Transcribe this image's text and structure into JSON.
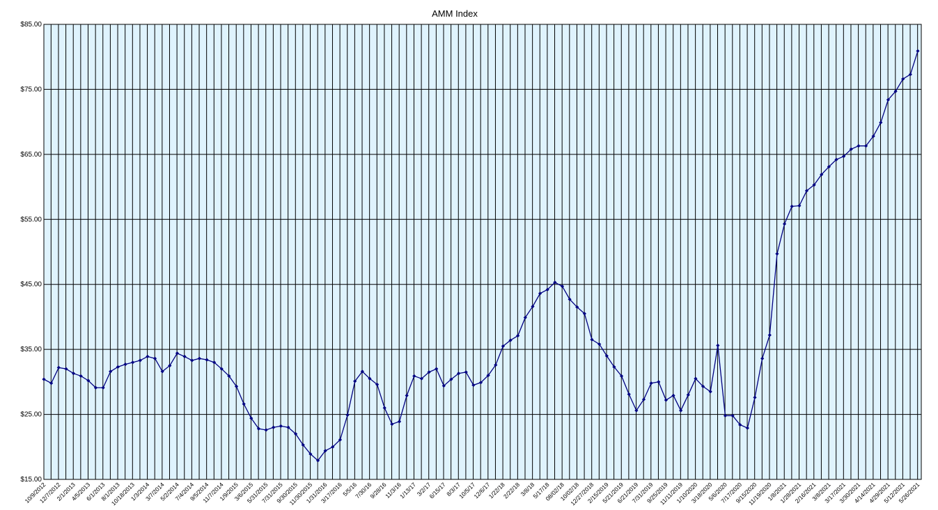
{
  "chart_data": {
    "type": "line",
    "title": "AMM Index",
    "categories": [
      "10/9/2012",
      null,
      "12/7/2012",
      null,
      "2/1/2013",
      null,
      "4/5/2013",
      null,
      "6/1/2013",
      null,
      "8/1/2013",
      null,
      "10/18/2013",
      null,
      "1/3/2014",
      null,
      "3/7/2014",
      null,
      "5/2/2014",
      null,
      "7/4/2014",
      null,
      "9/5/2014",
      null,
      "11/7/2014",
      null,
      "1/9/2015",
      null,
      "3/6/2015",
      null,
      "5/31/2015",
      null,
      "7/31/2015",
      null,
      "9/30/2015",
      null,
      "11/30/2015",
      null,
      "1/31/2016",
      null,
      "3/17/2016",
      null,
      "5/5/16",
      null,
      "7/30/16",
      null,
      "9/28/16",
      null,
      "11/3/16",
      null,
      "1/13/17",
      null,
      "3/2/17",
      null,
      "6/15/17",
      null,
      "8/3/17",
      null,
      "10/5/17",
      null,
      "12/6/17",
      null,
      "1/22/18",
      null,
      "2/22/18",
      null,
      "3/8/18",
      null,
      "5/17/18",
      null,
      "08/02/18",
      null,
      "10/02/18",
      null,
      "12/27/2018",
      null,
      "2/15/2019",
      null,
      "5/21/2019",
      null,
      "6/21/2019",
      null,
      "7/31/2019",
      null,
      "9/25/2019",
      null,
      "11/11/2019",
      null,
      "1/10/2020",
      null,
      "3/18/2020",
      null,
      "5/6/2020",
      null,
      "7/17/2020",
      null,
      "9/15/2020",
      null,
      "11/19/2020",
      null,
      "1/8/2021",
      null,
      "1/28/2021",
      null,
      "2/16/2021",
      null,
      "3/8/2021",
      null,
      "3/17/2021",
      null,
      "3/30/2021",
      null,
      "4/14/2021",
      null,
      "4/29/2021",
      null,
      "5/12/2021",
      null,
      "5/26/2021"
    ],
    "series": [
      {
        "name": "AMM Index",
        "color": "#000080",
        "values": [
          30.4,
          29.8,
          32.2,
          32.0,
          31.3,
          30.9,
          30.2,
          29.1,
          29.1,
          31.6,
          32.3,
          32.7,
          33.0,
          33.3,
          33.9,
          33.6,
          31.6,
          32.5,
          34.4,
          33.9,
          33.3,
          33.6,
          33.4,
          33.0,
          32.0,
          30.9,
          29.3,
          26.6,
          24.4,
          22.8,
          22.6,
          23.0,
          23.2,
          23.0,
          22.0,
          20.3,
          18.9,
          17.9,
          19.4,
          20.0,
          21.1,
          24.9,
          30.1,
          31.6,
          30.5,
          29.6,
          26.0,
          23.5,
          23.9,
          27.9,
          30.9,
          30.5,
          31.5,
          32.0,
          29.4,
          30.4,
          31.3,
          31.5,
          29.5,
          29.9,
          31.0,
          32.6,
          35.5,
          36.4,
          37.1,
          39.9,
          41.6,
          43.6,
          44.2,
          45.3,
          44.7,
          42.7,
          41.5,
          40.5,
          36.5,
          35.8,
          34.0,
          32.3,
          30.9,
          28.1,
          25.6,
          27.3,
          29.8,
          30.0,
          27.2,
          27.9,
          25.6,
          28.0,
          30.5,
          29.3,
          28.5,
          35.6,
          24.8,
          24.8,
          23.4,
          22.9,
          27.6,
          33.6,
          37.2,
          49.7,
          54.3,
          57.0,
          57.1,
          59.4,
          60.3,
          61.9,
          63.1,
          64.2,
          64.7,
          65.8,
          66.3,
          66.3,
          67.8,
          69.9,
          73.4,
          74.7,
          76.6,
          77.3,
          80.9
        ]
      }
    ],
    "ylim": [
      15,
      85
    ],
    "yticks": [
      {
        "value": 15,
        "label": "$15.00"
      },
      {
        "value": 25,
        "label": "$25.00"
      },
      {
        "value": 35,
        "label": "$35.00"
      },
      {
        "value": 45,
        "label": "$45.00"
      },
      {
        "value": 55,
        "label": "$55.00"
      },
      {
        "value": 65,
        "label": "$65.00"
      },
      {
        "value": 75,
        "label": "$75.00"
      },
      {
        "value": 85,
        "label": "$85.00"
      }
    ],
    "grid": true,
    "background": "#dff3fd"
  }
}
